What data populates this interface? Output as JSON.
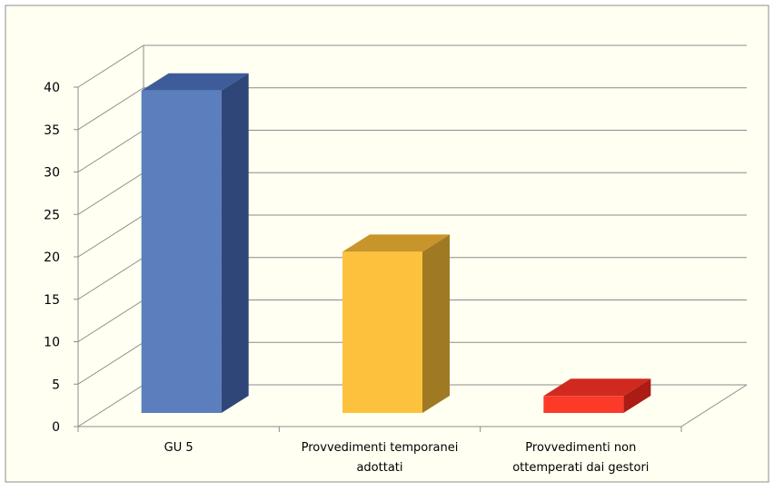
{
  "chart_data": {
    "type": "bar",
    "title": "",
    "xlabel": "",
    "ylabel": "",
    "categories": [
      [
        "GU 5"
      ],
      [
        "Provvedimenti temporanei",
        "adottati"
      ],
      [
        "Provvedimenti non",
        "ottemperati dai gestori"
      ]
    ],
    "values": [
      38,
      19,
      2
    ],
    "ylim": [
      0,
      40
    ],
    "yticks": [
      "0",
      "5",
      "10",
      "15",
      "20",
      "25",
      "30",
      "35",
      "40"
    ],
    "grid": true,
    "legend": "none",
    "style": "3d-bar"
  },
  "colors": {
    "background": "#fffff2",
    "border": "#8c8c8c",
    "grid": "#8c8c8c",
    "bars": [
      {
        "front": "#5b7fbd",
        "side": "#2f4778",
        "top": "#3e5c99"
      },
      {
        "front": "#fcc23e",
        "side": "#a07a22",
        "top": "#c8952a"
      },
      {
        "front": "#fb3a2a",
        "side": "#aa1c14",
        "top": "#d02a20"
      }
    ]
  }
}
